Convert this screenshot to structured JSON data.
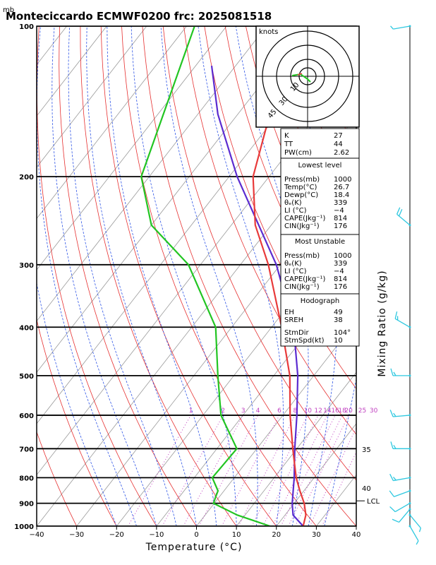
{
  "chart_data": {
    "type": "skew-t",
    "title": "Monteciccardo ECMWF0200  frc: 2025081518",
    "pressure_unit": "mb",
    "xlabel": "Temperature (°C)",
    "ylabel_right": "Mixing Ratio (g/kg)",
    "x_ticks": [
      "−40",
      "−30",
      "−20",
      "−10",
      "0",
      "10",
      "20",
      "30",
      "40"
    ],
    "x_range": [
      -40,
      40
    ],
    "y_ticks": [
      "100",
      "200",
      "300",
      "400",
      "500",
      "600",
      "700",
      "800",
      "900",
      "1000"
    ],
    "y_range": [
      1000,
      100
    ],
    "log_pressure": true,
    "mixing_ratio_labels": [
      "1",
      "2",
      "3",
      "4",
      "6",
      "8",
      "10",
      "12",
      "14",
      "16",
      "18",
      "20",
      "25",
      "30"
    ],
    "isotherm_labels": [
      "35",
      "40"
    ],
    "lcl_label": "LCL",
    "lcl_pressure": 890,
    "temperature_profile": [
      {
        "p": 1000,
        "t": 26.7
      },
      {
        "p": 950,
        "t": 25.2
      },
      {
        "p": 900,
        "t": 22.5
      },
      {
        "p": 850,
        "t": 19.0
      },
      {
        "p": 800,
        "t": 15.5
      },
      {
        "p": 700,
        "t": 9.0
      },
      {
        "p": 600,
        "t": 1.8
      },
      {
        "p": 500,
        "t": -6.0
      },
      {
        "p": 400,
        "t": -17.5
      },
      {
        "p": 300,
        "t": -33.0
      },
      {
        "p": 250,
        "t": -44.0
      },
      {
        "p": 200,
        "t": -54.0
      },
      {
        "p": 150,
        "t": -62.0
      },
      {
        "p": 100,
        "t": -71.0
      }
    ],
    "dewpoint_profile": [
      {
        "p": 1000,
        "t": 18.4
      },
      {
        "p": 950,
        "t": 8.0
      },
      {
        "p": 900,
        "t": -0.2
      },
      {
        "p": 870,
        "t": -1.0
      },
      {
        "p": 850,
        "t": -1.5
      },
      {
        "p": 800,
        "t": -5.5
      },
      {
        "p": 700,
        "t": -5.0
      },
      {
        "p": 600,
        "t": -15.5
      },
      {
        "p": 500,
        "t": -24.0
      },
      {
        "p": 400,
        "t": -34.0
      },
      {
        "p": 300,
        "t": -53.0
      },
      {
        "p": 250,
        "t": -70.0
      },
      {
        "p": 200,
        "t": -82.0
      },
      {
        "p": 100,
        "t": -98.0
      }
    ],
    "parcel_profile": [
      {
        "p": 1000,
        "t": 26.7
      },
      {
        "p": 950,
        "t": 22.0
      },
      {
        "p": 900,
        "t": 19.5
      },
      {
        "p": 800,
        "t": 15.0
      },
      {
        "p": 700,
        "t": 9.5
      },
      {
        "p": 600,
        "t": 3.5
      },
      {
        "p": 500,
        "t": -4.0
      },
      {
        "p": 400,
        "t": -14.5
      },
      {
        "p": 300,
        "t": -31.0
      },
      {
        "p": 200,
        "t": -58.0
      },
      {
        "p": 150,
        "t": -75.0
      },
      {
        "p": 120,
        "t": -86.0
      }
    ],
    "wind_barbs": [
      {
        "p": 1000,
        "dir": 150,
        "spd": 5
      },
      {
        "p": 950,
        "dir": 140,
        "spd": 7
      },
      {
        "p": 925,
        "dir": 220,
        "spd": 10
      },
      {
        "p": 900,
        "dir": 240,
        "spd": 12
      },
      {
        "p": 850,
        "dir": 250,
        "spd": 12
      },
      {
        "p": 800,
        "dir": 260,
        "spd": 15
      },
      {
        "p": 700,
        "dir": 270,
        "spd": 15
      },
      {
        "p": 600,
        "dir": 265,
        "spd": 15
      },
      {
        "p": 500,
        "dir": 270,
        "spd": 15
      },
      {
        "p": 400,
        "dir": 300,
        "spd": 15
      },
      {
        "p": 250,
        "dir": 310,
        "spd": 20
      },
      {
        "p": 100,
        "dir": 260,
        "spd": 5
      }
    ],
    "hodograph": {
      "unit_label": "knots",
      "ring_labels": [
        "10",
        "30",
        "45"
      ]
    },
    "indices": {
      "top": [
        {
          "label": "K",
          "value": "27"
        },
        {
          "label": "TT",
          "value": "44"
        },
        {
          "label": "PW(cm)",
          "value": "2.62"
        }
      ],
      "lowest_level": {
        "header": "Lowest level",
        "rows": [
          {
            "label": "Press(mb)",
            "value": "1000"
          },
          {
            "label": "Temp(°C)",
            "value": "26.7"
          },
          {
            "label": "Dewp(°C)",
            "value": "18.4"
          },
          {
            "label": "θₑ(K)",
            "value": "339"
          },
          {
            "label": "LI (°C)",
            "value": "−4"
          },
          {
            "label": "CAPE(Jkg⁻¹)",
            "value": "814"
          },
          {
            "label": "CIN(Jkg⁻¹)",
            "value": "176"
          }
        ]
      },
      "most_unstable": {
        "header": "Most Unstable",
        "rows": [
          {
            "label": "Press(mb)",
            "value": "1000"
          },
          {
            "label": "θₑ(K)",
            "value": "339"
          },
          {
            "label": "LI (°C)",
            "value": "−4"
          },
          {
            "label": "CAPE(Jkg⁻¹)",
            "value": "814"
          },
          {
            "label": "CIN(Jkg⁻¹)",
            "value": "176"
          }
        ]
      },
      "hodograph_box": {
        "header": "Hodograph",
        "rows": [
          {
            "label": "EH",
            "value": "49"
          },
          {
            "label": "SREH",
            "value": "38"
          },
          {
            "label": "StmDir",
            "value": "104°"
          },
          {
            "label": "StmSpd(kt)",
            "value": "10"
          }
        ]
      }
    },
    "colors": {
      "temperature": "#e83a3a",
      "dewpoint": "#22c522",
      "parcel": "#5b2bd0",
      "dry_adiabat": "#e63030",
      "moist_adiabat": "#2f55e6",
      "mixing_ratio": "#c040c0",
      "isobar": "#000000",
      "isotherm": "#9a9a9a",
      "wind_barb": "#2ec8e0"
    }
  }
}
